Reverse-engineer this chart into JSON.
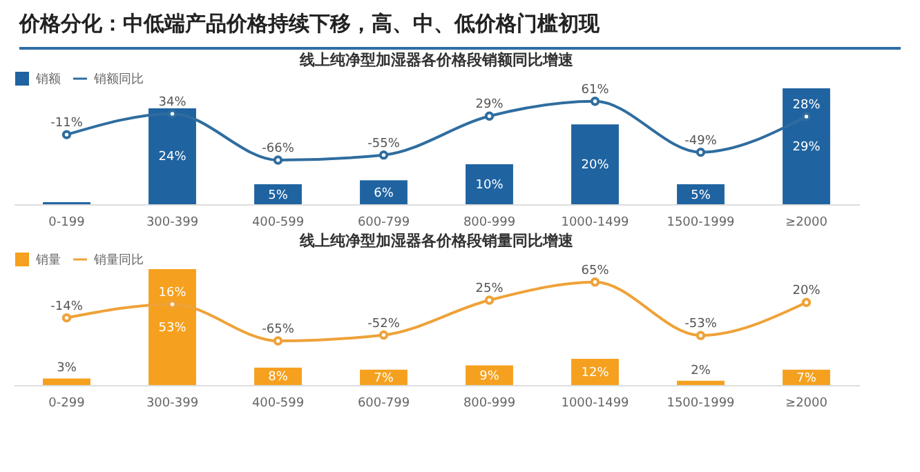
{
  "chart_data": [
    {
      "type": "other",
      "title": "价格分化：中低端产品价格持续下移，高、中、低价格门槛初现"
    },
    {
      "type": "bar",
      "title": "线上纯净型加湿器各价格段销额同比增速",
      "categories": [
        "0-199",
        "300-399",
        "400-599",
        "600-799",
        "800-999",
        "1000-1499",
        "1500-1999",
        "≥2000"
      ],
      "legend": "top",
      "marker": "circle",
      "series": [
        {
          "name": "销额",
          "type": "bar",
          "color": "#1f63a0",
          "values": [
            0.5,
            24,
            5,
            6,
            10,
            20,
            5,
            29
          ],
          "value_labels": [
            null,
            "24%",
            "5%",
            "6%",
            "10%",
            "20%",
            "5%",
            "29%"
          ]
        },
        {
          "name": "销额同比",
          "type": "line",
          "axis": "y2",
          "color": "#2f6d9f",
          "values": [
            -11,
            34,
            -66,
            -55,
            29,
            61,
            -49,
            28
          ],
          "value_labels": [
            "-11%",
            "34%",
            "-66%",
            "-55%",
            "29%",
            "61%",
            "-49%",
            "28%"
          ]
        }
      ]
    },
    {
      "type": "bar",
      "title": "线上纯净型加湿器各价格段销量同比增速",
      "categories": [
        "0-299",
        "300-399",
        "400-599",
        "600-799",
        "800-999",
        "1000-1499",
        "1500-1999",
        "≥2000"
      ],
      "legend": "top",
      "marker": "circle",
      "series": [
        {
          "name": "销量",
          "type": "bar",
          "color": "#f5a01e",
          "values": [
            3,
            53,
            8,
            7,
            9,
            12,
            2,
            7
          ],
          "value_labels": [
            "3%",
            "53%",
            "8%",
            "7%",
            "9%",
            "12%",
            "2%",
            "7%"
          ]
        },
        {
          "name": "销量同比",
          "type": "line",
          "axis": "y2",
          "color": "#eea238",
          "values": [
            -14,
            16,
            -65,
            -52,
            25,
            65,
            -53,
            20
          ],
          "value_labels": [
            "-14%",
            "16%",
            "-65%",
            "-52%",
            "25%",
            "65%",
            "-53%",
            "20%"
          ]
        }
      ]
    }
  ]
}
